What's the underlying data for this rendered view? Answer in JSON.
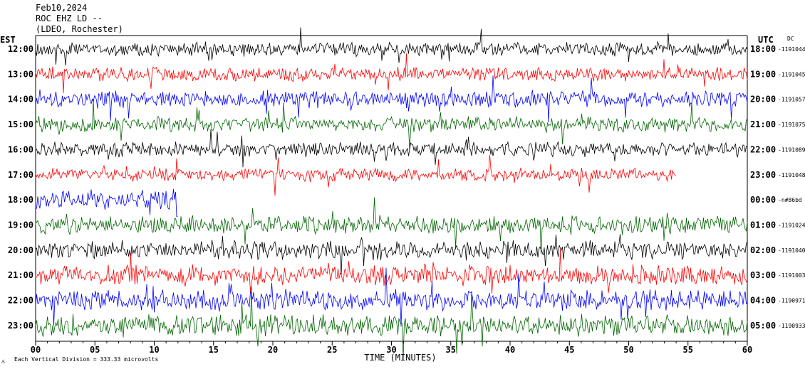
{
  "chart_data": {
    "type": "line",
    "title_lines": [
      "Feb10,2024",
      "ROC EHZ LD --",
      "(LDEO, Rochester)"
    ],
    "left_header": "EST",
    "right_header": "UTC",
    "dc_label": "DC",
    "xlabel": "TIME (MINUTES)",
    "x_ticks": [
      "00",
      "05",
      "10",
      "15",
      "20",
      "25",
      "30",
      "35",
      "40",
      "45",
      "50",
      "55",
      "60"
    ],
    "xlim": [
      0,
      60
    ],
    "footer": "Each Vertical Division =  333.33 microvolts",
    "colors": [
      "#000000",
      "#ff0000",
      "#0000ff",
      "#006400"
    ],
    "rows": [
      {
        "est": "12:00",
        "utc": "18:00",
        "dc": "-1191044",
        "color": "#000000",
        "amplitude": 0.6,
        "end_minute": 60
      },
      {
        "est": "13:00",
        "utc": "19:00",
        "dc": "-1191045",
        "color": "#ff0000",
        "amplitude": 0.6,
        "end_minute": 60
      },
      {
        "est": "14:00",
        "utc": "20:00",
        "dc": "-1191057",
        "color": "#0000ff",
        "amplitude": 0.7,
        "end_minute": 60
      },
      {
        "est": "15:00",
        "utc": "21:00",
        "dc": "-1191075",
        "color": "#006400",
        "amplitude": 0.65,
        "end_minute": 60
      },
      {
        "est": "16:00",
        "utc": "22:00",
        "dc": "-1191089",
        "color": "#000000",
        "amplitude": 0.6,
        "end_minute": 60
      },
      {
        "est": "17:00",
        "utc": "23:00",
        "dc": "-1191048",
        "color": "#ff0000",
        "amplitude": 0.55,
        "end_minute": 54
      },
      {
        "est": "18:00",
        "utc": "00:00",
        "dc": "-n#86bd",
        "color": "#0000ff",
        "amplitude": 0.8,
        "end_minute": 12
      },
      {
        "est": "19:00",
        "utc": "01:00",
        "dc": "-1191024",
        "color": "#006400",
        "amplitude": 0.75,
        "end_minute": 60
      },
      {
        "est": "20:00",
        "utc": "02:00",
        "dc": "-1191040",
        "color": "#000000",
        "amplitude": 0.8,
        "end_minute": 60
      },
      {
        "est": "21:00",
        "utc": "03:00",
        "dc": "-1191003",
        "color": "#ff0000",
        "amplitude": 0.85,
        "end_minute": 60
      },
      {
        "est": "22:00",
        "utc": "04:00",
        "dc": "-1190971",
        "color": "#0000ff",
        "amplitude": 0.85,
        "end_minute": 60
      },
      {
        "est": "23:00",
        "utc": "05:00",
        "dc": "-1190933",
        "color": "#006400",
        "amplitude": 0.9,
        "end_minute": 60
      }
    ]
  }
}
